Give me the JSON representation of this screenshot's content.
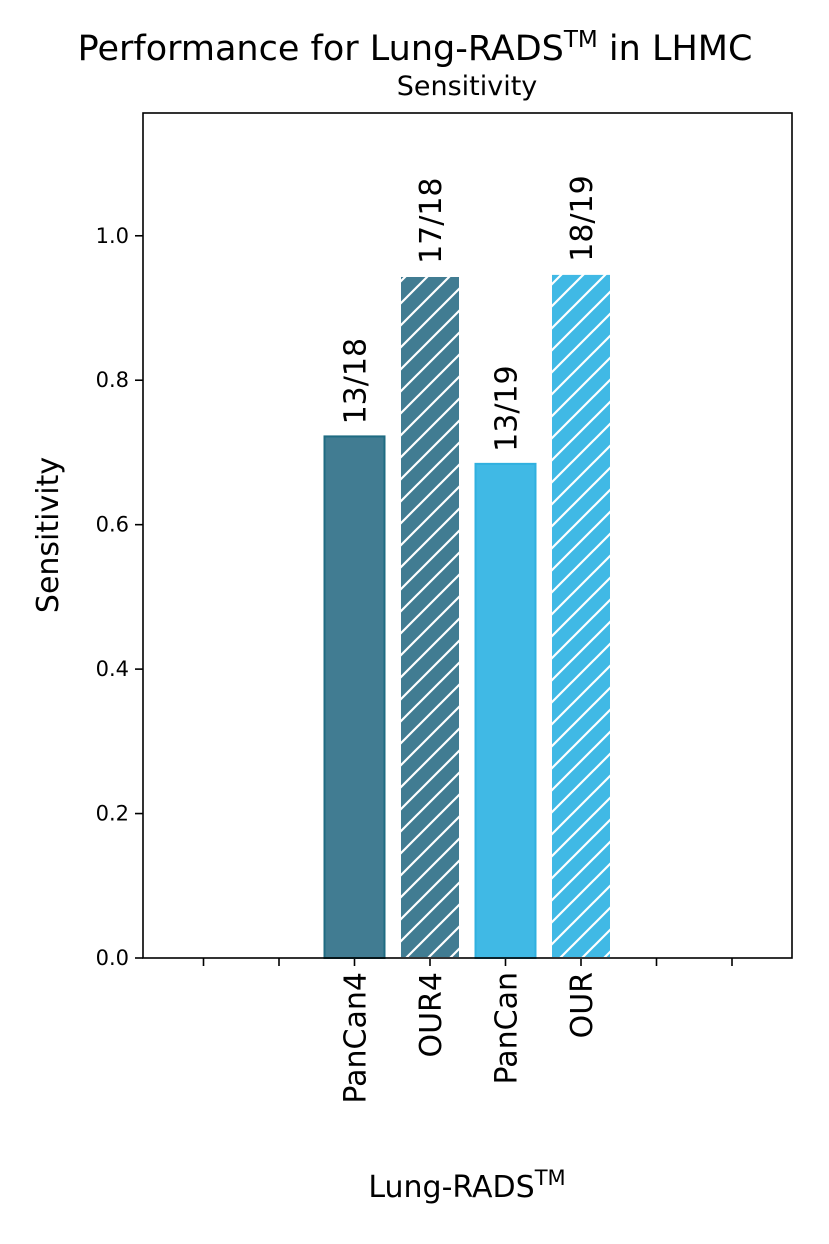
{
  "chart_data": {
    "type": "bar",
    "title_prefix": "Performance for Lung-RADS",
    "title_sup": "TM",
    "title_suffix": " in LHMC",
    "subtitle": "Sensitivity",
    "xlabel_main": "Lung-RADS",
    "xlabel_sup": "TM",
    "ylabel": "Sensitivity",
    "ylim": [
      0,
      1.17
    ],
    "yticks": [
      0.0,
      0.2,
      0.4,
      0.6,
      0.8,
      1.0
    ],
    "categories": [
      "PanCan4",
      "OUR4",
      "PanCan",
      "OUR"
    ],
    "values": [
      0.7222,
      0.9444,
      0.6842,
      0.9474
    ],
    "data_labels": [
      "13/18",
      "17/18",
      "13/19",
      "18/19"
    ],
    "colors": [
      "#417c92",
      "#417c92",
      "#40b9e5",
      "#40b9e5"
    ],
    "edge_colors": [
      "#1f6b82",
      "#ffffff",
      "#30b0df",
      "#ffffff"
    ],
    "hatched": [
      false,
      true,
      false,
      true
    ],
    "grid": false,
    "legend": "none"
  }
}
